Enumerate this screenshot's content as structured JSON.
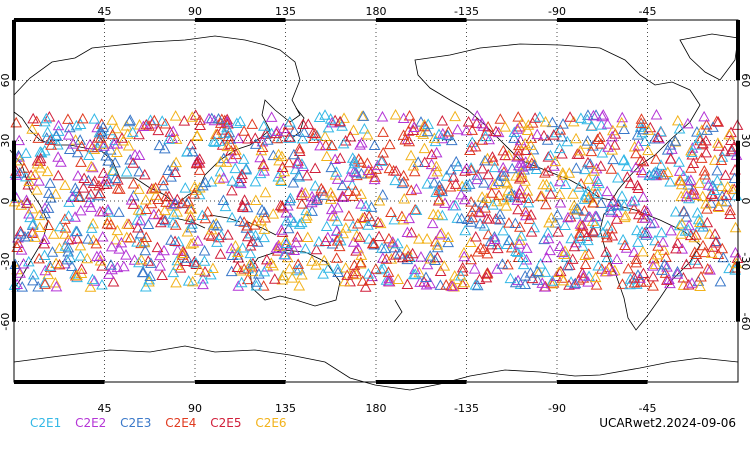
{
  "map": {
    "top_lon_labels": [
      "45",
      "90",
      "135",
      "180",
      "-135",
      "-90",
      "-45"
    ],
    "bottom_lon_labels": [
      "45",
      "90",
      "135",
      "180",
      "-135",
      "-90",
      "-45"
    ],
    "left_lat_labels": [
      "60",
      "30",
      "0",
      "-30",
      "-60"
    ],
    "right_lat_labels": [
      "60",
      "30",
      "0",
      "-30",
      "-60"
    ],
    "lon_ticks": [
      45,
      90,
      135,
      180,
      225,
      270,
      315
    ],
    "lat_ticks": [
      60,
      30,
      0,
      -30,
      -60
    ],
    "lon_range": [
      0,
      360
    ],
    "lat_range": [
      -90,
      90
    ],
    "grid": true,
    "marker": "triangle-outline",
    "obs_lat_band": [
      -43,
      43
    ]
  },
  "legend": {
    "items": [
      {
        "label": "C2E1",
        "color": "#33b8e6"
      },
      {
        "label": "C2E2",
        "color": "#b435d6"
      },
      {
        "label": "C2E3",
        "color": "#3a78c9"
      },
      {
        "label": "C2E4",
        "color": "#e03a1f"
      },
      {
        "label": "C2E5",
        "color": "#d11f3a"
      },
      {
        "label": "C2E6",
        "color": "#f2b21a"
      }
    ]
  },
  "footer": {
    "stamp": "UCARwet2.2024-09-06"
  }
}
